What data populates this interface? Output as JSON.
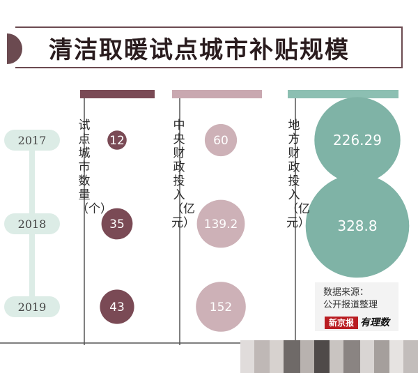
{
  "title": "清洁取暖试点城市补贴规模",
  "chart_data": {
    "type": "bubble",
    "categories": [
      "2017",
      "2018",
      "2019"
    ],
    "series": [
      {
        "name": "试点城市数量（个）",
        "color": "#7a4a55",
        "header_color": "#7a4a55",
        "values": [
          12,
          35,
          43
        ],
        "labels": [
          "12",
          "35",
          "43"
        ]
      },
      {
        "name": "中央财政投入（亿元）",
        "color": "#cdb1b7",
        "header_color": "#c9a8b0",
        "values": [
          60,
          139.2,
          152
        ],
        "labels": [
          "60",
          "139.2",
          "152"
        ]
      },
      {
        "name": "地方财政投入（亿元）",
        "color": "#7fb3a6",
        "header_color": "#8cbfb2",
        "values": [
          226.29,
          328.8,
          null
        ],
        "labels": [
          "226.29",
          "328.8",
          ""
        ]
      }
    ]
  },
  "source": {
    "line1": "数据来源：",
    "line2": "公开报道整理"
  },
  "logo": {
    "publisher": "新京报",
    "column": "有理数"
  },
  "colors": {
    "timeline": "#dcece6",
    "year_text": "#444444",
    "axis": "#555555"
  }
}
